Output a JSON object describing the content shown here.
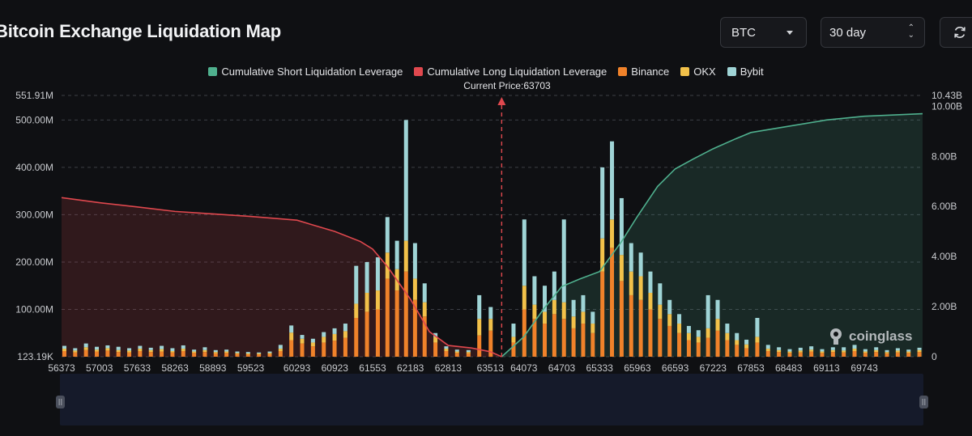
{
  "header": {
    "title": "Bitcoin Exchange Liquidation Map",
    "coin_select": "BTC",
    "range_select": "30 day"
  },
  "watermark": "coinglass",
  "colors": {
    "short": "#4fb08e",
    "long": "#e0484e",
    "binance": "#f0822a",
    "okx": "#f2c14a",
    "bybit": "#9fd4d6",
    "grid": "#3c3f46",
    "marker": "#e0484e"
  },
  "chart_data": {
    "type": "bar",
    "legend": [
      {
        "name": "Cumulative Short Liquidation Leverage",
        "color": "#4fb08e"
      },
      {
        "name": "Cumulative Long Liquidation Leverage",
        "color": "#e0484e"
      },
      {
        "name": "Binance",
        "color": "#f0822a"
      },
      {
        "name": "OKX",
        "color": "#f2c14a"
      },
      {
        "name": "Bybit",
        "color": "#9fd4d6"
      }
    ],
    "current_price_label": "Current Price:63703",
    "current_price": 63703,
    "x_range": [
      56373,
      70713
    ],
    "x_ticks": [
      56373,
      57003,
      57633,
      58263,
      58893,
      59523,
      60293,
      60923,
      61553,
      62183,
      62813,
      63513,
      64073,
      64703,
      65333,
      65963,
      66593,
      67223,
      67853,
      68483,
      69113,
      69743
    ],
    "y_left_ticks": [
      {
        "label": "123.19K",
        "value": 0
      },
      {
        "label": "100.00M",
        "value": 100
      },
      {
        "label": "200.00M",
        "value": 200
      },
      {
        "label": "300.00M",
        "value": 300
      },
      {
        "label": "400.00M",
        "value": 400
      },
      {
        "label": "500.00M",
        "value": 500
      },
      {
        "label": "551.91M",
        "value": 551.91
      }
    ],
    "y_right_ticks": [
      {
        "label": "0",
        "value": 0
      },
      {
        "label": "2.00B",
        "value": 2
      },
      {
        "label": "4.00B",
        "value": 4
      },
      {
        "label": "6.00B",
        "value": 6
      },
      {
        "label": "8.00B",
        "value": 8
      },
      {
        "label": "10.00B",
        "value": 10
      },
      {
        "label": "10.43B",
        "value": 10.43
      }
    ],
    "y_left_range": [
      0,
      551.91
    ],
    "y_right_range": [
      0,
      10.43
    ],
    "exchange_bars": [
      {
        "x": 56420,
        "binance": 12,
        "okx": 5,
        "bybit": 6
      },
      {
        "x": 56600,
        "binance": 9,
        "okx": 4,
        "bybit": 5
      },
      {
        "x": 56780,
        "binance": 14,
        "okx": 6,
        "bybit": 8
      },
      {
        "x": 56960,
        "binance": 11,
        "okx": 4,
        "bybit": 6
      },
      {
        "x": 57140,
        "binance": 13,
        "okx": 5,
        "bybit": 6
      },
      {
        "x": 57320,
        "binance": 10,
        "okx": 4,
        "bybit": 7
      },
      {
        "x": 57500,
        "binance": 9,
        "okx": 4,
        "bybit": 5
      },
      {
        "x": 57680,
        "binance": 12,
        "okx": 5,
        "bybit": 6
      },
      {
        "x": 57860,
        "binance": 10,
        "okx": 4,
        "bybit": 5
      },
      {
        "x": 58040,
        "binance": 11,
        "okx": 5,
        "bybit": 7
      },
      {
        "x": 58220,
        "binance": 9,
        "okx": 3,
        "bybit": 6
      },
      {
        "x": 58400,
        "binance": 12,
        "okx": 5,
        "bybit": 7
      },
      {
        "x": 58580,
        "binance": 8,
        "okx": 3,
        "bybit": 4
      },
      {
        "x": 58760,
        "binance": 10,
        "okx": 4,
        "bybit": 6
      },
      {
        "x": 58940,
        "binance": 7,
        "okx": 3,
        "bybit": 4
      },
      {
        "x": 59120,
        "binance": 8,
        "okx": 3,
        "bybit": 4
      },
      {
        "x": 59300,
        "binance": 6,
        "okx": 2,
        "bybit": 3
      },
      {
        "x": 59480,
        "binance": 5,
        "okx": 2,
        "bybit": 3
      },
      {
        "x": 59660,
        "binance": 5,
        "okx": 2,
        "bybit": 2
      },
      {
        "x": 59840,
        "binance": 6,
        "okx": 2,
        "bybit": 3
      },
      {
        "x": 60020,
        "binance": 12,
        "okx": 5,
        "bybit": 8
      },
      {
        "x": 60200,
        "binance": 35,
        "okx": 16,
        "bybit": 15
      },
      {
        "x": 60380,
        "binance": 28,
        "okx": 10,
        "bybit": 8
      },
      {
        "x": 60560,
        "binance": 22,
        "okx": 8,
        "bybit": 8
      },
      {
        "x": 60740,
        "binance": 30,
        "okx": 12,
        "bybit": 10
      },
      {
        "x": 60920,
        "binance": 34,
        "okx": 14,
        "bybit": 12
      },
      {
        "x": 61100,
        "binance": 40,
        "okx": 14,
        "bybit": 16
      },
      {
        "x": 61280,
        "binance": 82,
        "okx": 30,
        "bybit": 80
      },
      {
        "x": 61460,
        "binance": 95,
        "okx": 40,
        "bybit": 65
      },
      {
        "x": 61640,
        "binance": 100,
        "okx": 40,
        "bybit": 70
      },
      {
        "x": 61800,
        "binance": 165,
        "okx": 55,
        "bybit": 75
      },
      {
        "x": 61960,
        "binance": 140,
        "okx": 45,
        "bybit": 60
      },
      {
        "x": 62110,
        "binance": 180,
        "okx": 65,
        "bybit": 255
      },
      {
        "x": 62260,
        "binance": 120,
        "okx": 45,
        "bybit": 75
      },
      {
        "x": 62420,
        "binance": 85,
        "okx": 30,
        "bybit": 40
      },
      {
        "x": 62600,
        "binance": 30,
        "okx": 12,
        "bybit": 8
      },
      {
        "x": 62780,
        "binance": 12,
        "okx": 5,
        "bybit": 5
      },
      {
        "x": 62960,
        "binance": 8,
        "okx": 3,
        "bybit": 4
      },
      {
        "x": 63150,
        "binance": 7,
        "okx": 3,
        "bybit": 4
      },
      {
        "x": 63330,
        "binance": 45,
        "okx": 35,
        "bybit": 50
      },
      {
        "x": 63520,
        "binance": 55,
        "okx": 25,
        "bybit": 25
      },
      {
        "x": 63900,
        "binance": 30,
        "okx": 12,
        "bybit": 28
      },
      {
        "x": 64080,
        "binance": 100,
        "okx": 50,
        "bybit": 140
      },
      {
        "x": 64250,
        "binance": 80,
        "okx": 30,
        "bybit": 60
      },
      {
        "x": 64420,
        "binance": 70,
        "okx": 25,
        "bybit": 55
      },
      {
        "x": 64580,
        "binance": 90,
        "okx": 30,
        "bybit": 60
      },
      {
        "x": 64740,
        "binance": 80,
        "okx": 35,
        "bybit": 175
      },
      {
        "x": 64900,
        "binance": 60,
        "okx": 25,
        "bybit": 35
      },
      {
        "x": 65060,
        "binance": 70,
        "okx": 25,
        "bybit": 35
      },
      {
        "x": 65220,
        "binance": 50,
        "okx": 20,
        "bybit": 25
      },
      {
        "x": 65380,
        "binance": 180,
        "okx": 70,
        "bybit": 150
      },
      {
        "x": 65540,
        "binance": 230,
        "okx": 60,
        "bybit": 165
      },
      {
        "x": 65700,
        "binance": 160,
        "okx": 55,
        "bybit": 120
      },
      {
        "x": 65860,
        "binance": 130,
        "okx": 50,
        "bybit": 60
      },
      {
        "x": 66020,
        "binance": 120,
        "okx": 50,
        "bybit": 50
      },
      {
        "x": 66180,
        "binance": 100,
        "okx": 35,
        "bybit": 45
      },
      {
        "x": 66340,
        "binance": 80,
        "okx": 30,
        "bybit": 45
      },
      {
        "x": 66500,
        "binance": 65,
        "okx": 25,
        "bybit": 30
      },
      {
        "x": 66660,
        "binance": 50,
        "okx": 20,
        "bybit": 20
      },
      {
        "x": 66820,
        "binance": 35,
        "okx": 15,
        "bybit": 15
      },
      {
        "x": 66980,
        "binance": 30,
        "okx": 12,
        "bybit": 14
      },
      {
        "x": 67140,
        "binance": 40,
        "okx": 20,
        "bybit": 70
      },
      {
        "x": 67300,
        "binance": 55,
        "okx": 25,
        "bybit": 40
      },
      {
        "x": 67460,
        "binance": 35,
        "okx": 15,
        "bybit": 20
      },
      {
        "x": 67620,
        "binance": 25,
        "okx": 10,
        "bybit": 15
      },
      {
        "x": 67780,
        "binance": 18,
        "okx": 8,
        "bybit": 10
      },
      {
        "x": 67960,
        "binance": 30,
        "okx": 12,
        "bybit": 40
      },
      {
        "x": 68140,
        "binance": 12,
        "okx": 5,
        "bybit": 8
      },
      {
        "x": 68320,
        "binance": 10,
        "okx": 4,
        "bybit": 6
      },
      {
        "x": 68500,
        "binance": 8,
        "okx": 3,
        "bybit": 5
      },
      {
        "x": 68680,
        "binance": 9,
        "okx": 4,
        "bybit": 6
      },
      {
        "x": 68860,
        "binance": 11,
        "okx": 4,
        "bybit": 7
      },
      {
        "x": 69040,
        "binance": 8,
        "okx": 3,
        "bybit": 5
      },
      {
        "x": 69220,
        "binance": 10,
        "okx": 4,
        "bybit": 6
      },
      {
        "x": 69400,
        "binance": 9,
        "okx": 4,
        "bybit": 7
      },
      {
        "x": 69580,
        "binance": 12,
        "okx": 5,
        "bybit": 8
      },
      {
        "x": 69760,
        "binance": 8,
        "okx": 3,
        "bybit": 5
      },
      {
        "x": 69940,
        "binance": 10,
        "okx": 4,
        "bybit": 6
      },
      {
        "x": 70120,
        "binance": 7,
        "okx": 3,
        "bybit": 4
      },
      {
        "x": 70300,
        "binance": 9,
        "okx": 4,
        "bybit": 5
      },
      {
        "x": 70480,
        "binance": 8,
        "okx": 3,
        "bybit": 4
      },
      {
        "x": 70660,
        "binance": 10,
        "okx": 4,
        "bybit": 5
      }
    ],
    "cumulative_long": [
      {
        "x": 56373,
        "y": 6.35
      },
      {
        "x": 57003,
        "y": 6.15
      },
      {
        "x": 57633,
        "y": 5.98
      },
      {
        "x": 58263,
        "y": 5.8
      },
      {
        "x": 58893,
        "y": 5.7
      },
      {
        "x": 59523,
        "y": 5.6
      },
      {
        "x": 60293,
        "y": 5.45
      },
      {
        "x": 60923,
        "y": 5.0
      },
      {
        "x": 61350,
        "y": 4.6
      },
      {
        "x": 61553,
        "y": 4.3
      },
      {
        "x": 61800,
        "y": 3.6
      },
      {
        "x": 62183,
        "y": 2.3
      },
      {
        "x": 62500,
        "y": 1.0
      },
      {
        "x": 62813,
        "y": 0.45
      },
      {
        "x": 63200,
        "y": 0.35
      },
      {
        "x": 63513,
        "y": 0.2
      },
      {
        "x": 63703,
        "y": 0
      }
    ],
    "cumulative_short": [
      {
        "x": 63703,
        "y": 0
      },
      {
        "x": 64073,
        "y": 0.8
      },
      {
        "x": 64400,
        "y": 1.9
      },
      {
        "x": 64703,
        "y": 2.8
      },
      {
        "x": 65000,
        "y": 3.1
      },
      {
        "x": 65333,
        "y": 3.4
      },
      {
        "x": 65700,
        "y": 4.6
      },
      {
        "x": 65963,
        "y": 5.6
      },
      {
        "x": 66300,
        "y": 6.8
      },
      {
        "x": 66593,
        "y": 7.5
      },
      {
        "x": 66900,
        "y": 7.9
      },
      {
        "x": 67223,
        "y": 8.3
      },
      {
        "x": 67600,
        "y": 8.7
      },
      {
        "x": 67853,
        "y": 8.95
      },
      {
        "x": 68483,
        "y": 9.2
      },
      {
        "x": 69113,
        "y": 9.45
      },
      {
        "x": 69743,
        "y": 9.6
      },
      {
        "x": 70713,
        "y": 9.7
      }
    ]
  }
}
